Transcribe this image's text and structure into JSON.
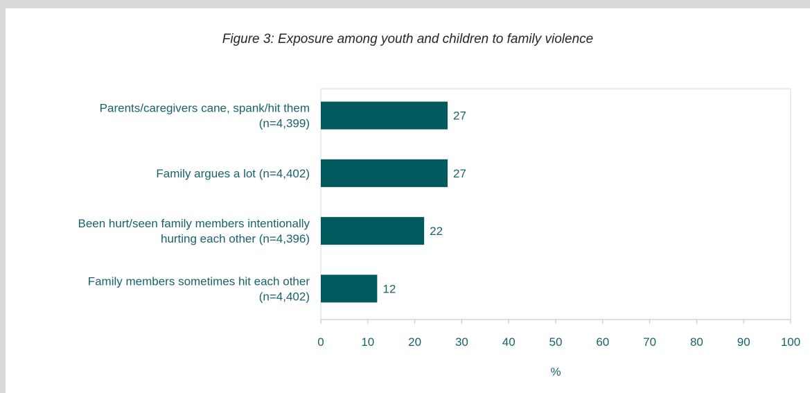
{
  "colors": {
    "bar": "#005a5e",
    "text": "#17636b",
    "axis": "#bfbfbf"
  },
  "chart_data": {
    "type": "bar",
    "orientation": "horizontal",
    "title": "Figure 3: Exposure among youth and children to family violence",
    "xlabel": "%",
    "ylabel": "",
    "xlim": [
      0,
      100
    ],
    "xticks": [
      "0",
      "10",
      "20",
      "30",
      "40",
      "50",
      "60",
      "70",
      "80",
      "90",
      "100"
    ],
    "categories": [
      [
        "Parents/caregivers cane, spank/hit them",
        "(n=4,399)"
      ],
      [
        "Family argues a lot (n=4,402)"
      ],
      [
        "Been hurt/seen family members intentionally",
        "hurting each other (n=4,396)"
      ],
      [
        "Family members sometimes hit each other",
        "(n=4,402)"
      ]
    ],
    "values": [
      27,
      27,
      22,
      12
    ],
    "data_labels": [
      "27",
      "27",
      "22",
      "12"
    ],
    "grid": false,
    "legend": "none"
  }
}
